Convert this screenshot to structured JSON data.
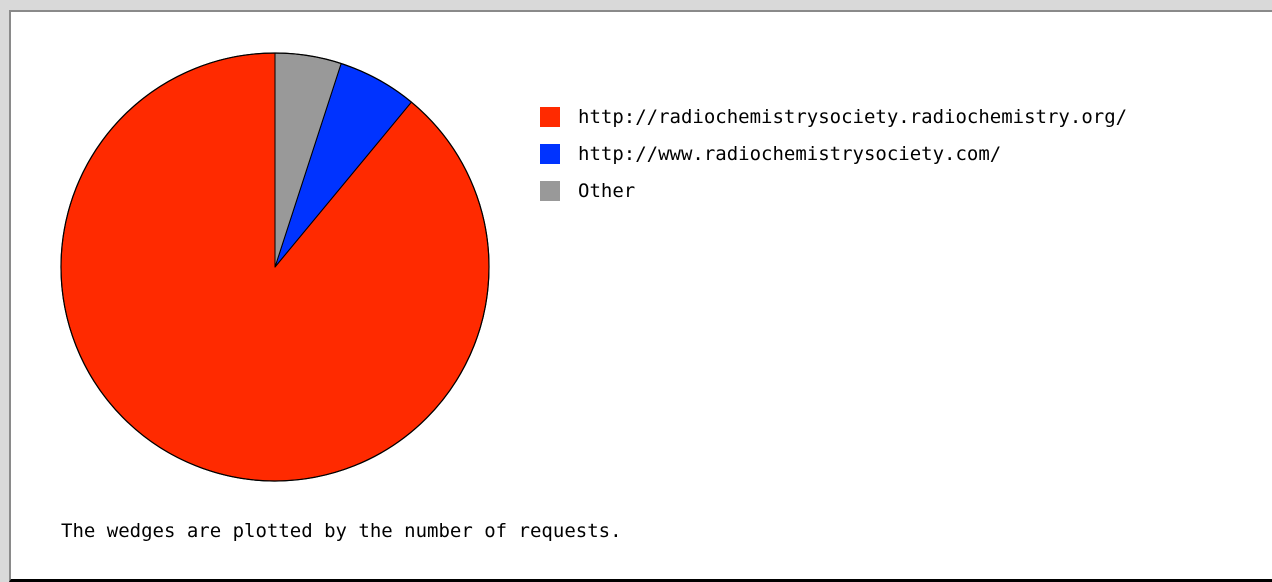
{
  "chart_data": {
    "type": "pie",
    "slices": [
      {
        "label": "http://radiochemistrysociety.radiochemistry.org/",
        "value": 89,
        "color": "#ff2a00"
      },
      {
        "label": "http://www.radiochemistrysociety.com/",
        "value": 6,
        "color": "#0033ff"
      },
      {
        "label": "Other",
        "value": 5,
        "color": "#999999"
      }
    ],
    "start": "top",
    "direction": "counterclockwise",
    "legend_position": "right",
    "note": "The wedges are plotted by the number of requests."
  }
}
